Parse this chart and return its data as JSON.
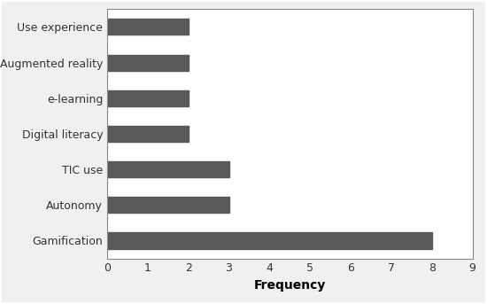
{
  "categories": [
    "Gamification",
    "Autonomy",
    "TIC use",
    "Digital literacy",
    "e-learning",
    "Augmented reality",
    "Use experience"
  ],
  "values": [
    8,
    3,
    3,
    2,
    2,
    2,
    2
  ],
  "bar_color": "#595959",
  "xlabel": "Frequency",
  "xlim": [
    0,
    9
  ],
  "xticks": [
    0,
    1,
    2,
    3,
    4,
    5,
    6,
    7,
    8,
    9
  ],
  "background_color": "#f0f0f0",
  "plot_bg_color": "#ffffff",
  "xlabel_fontsize": 10,
  "ylabel_fontsize": 10,
  "tick_fontsize": 9,
  "bar_height": 0.45,
  "outer_border_color": "#aaaaaa",
  "spine_color": "#888888"
}
